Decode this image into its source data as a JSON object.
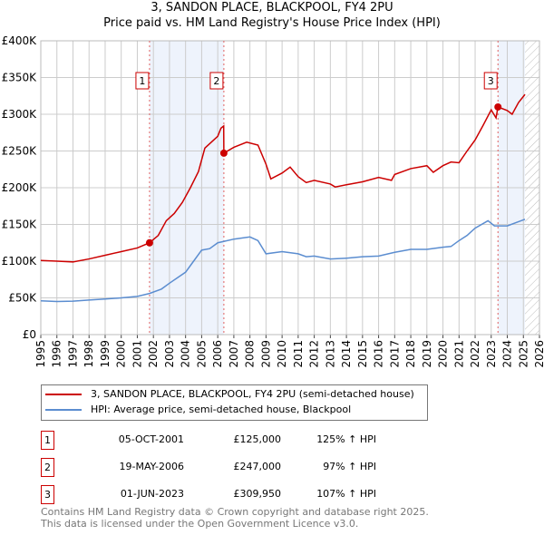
{
  "chart_data": {
    "type": "line",
    "title": "3, SANDON PLACE, BLACKPOOL, FY4 2PU",
    "subtitle": "Price paid vs. HM Land Registry's House Price Index (HPI)",
    "xlim": [
      1995,
      2026
    ],
    "ylim": [
      0,
      400000
    ],
    "x_ticks": [
      "1995",
      "1996",
      "1997",
      "1998",
      "1999",
      "2000",
      "2001",
      "2002",
      "2003",
      "2004",
      "2005",
      "2006",
      "2007",
      "2008",
      "2009",
      "2010",
      "2011",
      "2012",
      "2013",
      "2014",
      "2015",
      "2016",
      "2017",
      "2018",
      "2019",
      "2020",
      "2021",
      "2022",
      "2023",
      "2024",
      "2025",
      "2026"
    ],
    "y_ticks": [
      {
        "v": 0,
        "label": "£0"
      },
      {
        "v": 50000,
        "label": "£50K"
      },
      {
        "v": 100000,
        "label": "£100K"
      },
      {
        "v": 150000,
        "label": "£150K"
      },
      {
        "v": 200000,
        "label": "£200K"
      },
      {
        "v": 250000,
        "label": "£250K"
      },
      {
        "v": 300000,
        "label": "£300K"
      },
      {
        "v": 350000,
        "label": "£350K"
      },
      {
        "v": 400000,
        "label": "£400K"
      }
    ],
    "grid": true,
    "shaded_periods": [
      [
        2001.76,
        2006.38
      ],
      [
        2023.42,
        2025.1
      ]
    ],
    "forecast_hatch_from": 2025.1,
    "series": [
      {
        "name": "3, SANDON PLACE, BLACKPOOL, FY4 2PU (semi-detached house)",
        "color": "#cc0000",
        "x": [
          1995,
          1996,
          1997,
          1998,
          1999,
          2000,
          2001,
          2001.76,
          2002.3,
          2002.8,
          2003.3,
          2003.8,
          2004.3,
          2004.8,
          2005.2,
          2005.6,
          2006,
          2006.2,
          2006.37,
          2006.38,
          2007,
          2007.8,
          2008.5,
          2009,
          2009.3,
          2010,
          2010.5,
          2011,
          2011.5,
          2012,
          2013,
          2013.3,
          2014,
          2015,
          2016,
          2016.8,
          2017,
          2018,
          2019,
          2019.4,
          2020,
          2020.5,
          2021,
          2021.5,
          2022,
          2022.5,
          2023,
          2023.3,
          2023.42,
          2024,
          2024.3,
          2024.7,
          2025.1
        ],
        "y": [
          101000,
          100000,
          99000,
          103000,
          108000,
          113000,
          118000,
          125000,
          135000,
          155000,
          165000,
          180000,
          200000,
          222000,
          254000,
          262000,
          270000,
          281000,
          284000,
          247000,
          255000,
          262000,
          258000,
          232000,
          212000,
          220000,
          228000,
          215000,
          207000,
          210000,
          205000,
          201000,
          204000,
          208000,
          214000,
          210000,
          218000,
          226000,
          230000,
          221000,
          230000,
          235000,
          234000,
          250000,
          265000,
          285000,
          306000,
          295000,
          309950,
          305000,
          300000,
          316000,
          327000
        ]
      },
      {
        "name": "HPI: Average price, semi-detached house, Blackpool",
        "color": "#5b8dd0",
        "x": [
          1995,
          1996,
          1997,
          1998,
          1999,
          2000,
          2001,
          2001.76,
          2002.5,
          2003,
          2004,
          2004.5,
          2005,
          2005.5,
          2006,
          2006.4,
          2007,
          2008,
          2008.5,
          2009,
          2010,
          2011,
          2011.5,
          2012,
          2013,
          2014,
          2015,
          2016,
          2017,
          2018,
          2019,
          2020,
          2020.5,
          2021,
          2021.5,
          2022,
          2022.8,
          2023.2,
          2024,
          2025.1
        ],
        "y": [
          46000,
          45000,
          45500,
          47000,
          48500,
          50000,
          52000,
          56000,
          62000,
          70000,
          85000,
          100000,
          115000,
          117000,
          125000,
          127000,
          130000,
          133000,
          128000,
          110000,
          113000,
          110000,
          106000,
          107000,
          103000,
          104000,
          106000,
          107000,
          112000,
          116000,
          116000,
          119000,
          120000,
          128000,
          135000,
          145000,
          155000,
          148000,
          148000,
          157000
        ]
      }
    ],
    "sales": [
      {
        "n": "1",
        "x": 2001.76,
        "y": 125000,
        "date": "05-OCT-2001",
        "price": "£125,000",
        "hpi": "125% ↑ HPI"
      },
      {
        "n": "2",
        "x": 2006.38,
        "y": 247000,
        "date": "19-MAY-2006",
        "price": "£247,000",
        "hpi": "97% ↑ HPI"
      },
      {
        "n": "3",
        "x": 2023.42,
        "y": 309950,
        "date": "01-JUN-2023",
        "price": "£309,950",
        "hpi": "107% ↑ HPI"
      }
    ]
  },
  "legend": {
    "red": "3, SANDON PLACE, BLACKPOOL, FY4 2PU (semi-detached house)",
    "blue": "HPI: Average price, semi-detached house, Blackpool"
  },
  "footer": {
    "line1": "Contains HM Land Registry data © Crown copyright and database right 2025.",
    "line2": "This data is licensed under the Open Government Licence v3.0."
  }
}
